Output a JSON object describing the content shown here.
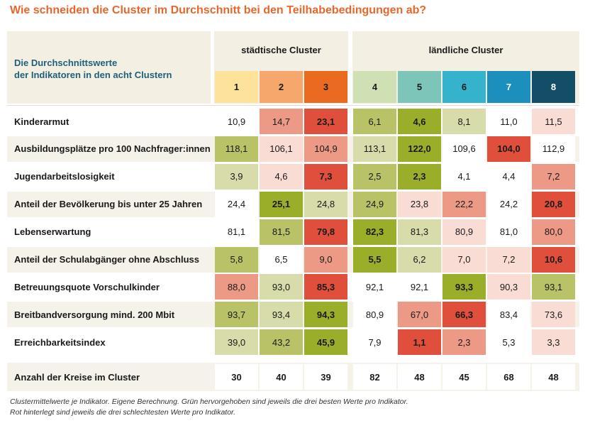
{
  "title": "Wie schneiden die Cluster im Durchschnitt bei den Teilhabebedingungen ab?",
  "header": {
    "description_line1": "Die Durchschnittswerte",
    "description_line2": "der Indikatoren in den acht Clustern",
    "group_urban": "städtische Cluster",
    "group_rural": "ländliche Cluster"
  },
  "chart_data": {
    "type": "table",
    "clusters": [
      {
        "label": "1",
        "color": "#fde39a",
        "text_color": "#1a1a1a"
      },
      {
        "label": "2",
        "color": "#f5a76c",
        "text_color": "#1a1a1a"
      },
      {
        "label": "3",
        "color": "#ea6b1f",
        "text_color": "#1a1a1a"
      },
      {
        "label": "4",
        "color": "#cfe1b4",
        "text_color": "#1a1a1a"
      },
      {
        "label": "5",
        "color": "#7cc5b8",
        "text_color": "#1a1a1a"
      },
      {
        "label": "6",
        "color": "#35b3cd",
        "text_color": "#1a1a1a"
      },
      {
        "label": "7",
        "color": "#1d8fbd",
        "text_color": "#ffffff"
      },
      {
        "label": "8",
        "color": "#124e66",
        "text_color": "#ffffff"
      }
    ],
    "rows": [
      {
        "label": "Kinderarmut",
        "values": [
          "10,9",
          "14,7",
          "23,1",
          "6,1",
          "4,6",
          "8,1",
          "11,0",
          "11,5"
        ],
        "shade": [
          0,
          -2,
          -4,
          2,
          4,
          1,
          0,
          -1
        ]
      },
      {
        "label": "Ausbildungsplätze pro 100 Nachfrager:innen",
        "values": [
          "118,1",
          "106,1",
          "104,9",
          "113,1",
          "122,0",
          "109,6",
          "104,0",
          "112,9"
        ],
        "shade": [
          2,
          -1,
          -2,
          1,
          4,
          0,
          -4,
          0
        ]
      },
      {
        "label": "Jugendarbeitslosigkeit",
        "values": [
          "3,9",
          "4,6",
          "7,3",
          "2,5",
          "2,3",
          "4,1",
          "4,4",
          "7,2"
        ],
        "shade": [
          1,
          -1,
          -4,
          2,
          4,
          0,
          0,
          -2
        ]
      },
      {
        "label": "Anteil der Bevölkerung bis unter 25 Jahren",
        "values": [
          "24,4",
          "25,1",
          "24,8",
          "24,9",
          "23,8",
          "22,2",
          "24,2",
          "20,8"
        ],
        "shade": [
          0,
          4,
          1,
          2,
          -1,
          -2,
          0,
          -4
        ]
      },
      {
        "label": "Lebenserwartung",
        "values": [
          "81,1",
          "81,5",
          "79,8",
          "82,3",
          "81,3",
          "80,9",
          "81,0",
          "80,0"
        ],
        "shade": [
          0,
          2,
          -4,
          4,
          1,
          -1,
          0,
          -2
        ]
      },
      {
        "label": "Anteil der Schulabgänger ohne Abschluss",
        "values": [
          "5,8",
          "6,5",
          "9,0",
          "5,5",
          "6,2",
          "7,0",
          "7,2",
          "10,6"
        ],
        "shade": [
          2,
          0,
          -2,
          4,
          1,
          -1,
          -1,
          -4
        ]
      },
      {
        "label": "Betreuungsquote Vorschulkinder",
        "values": [
          "88,0",
          "93,0",
          "85,3",
          "92,1",
          "92,1",
          "93,3",
          "90,3",
          "93,1"
        ],
        "shade": [
          -2,
          1,
          -4,
          0,
          0,
          4,
          -1,
          2
        ]
      },
      {
        "label": "Breitbandversorgung mind. 200 Mbit",
        "values": [
          "93,7",
          "93,4",
          "94,3",
          "80,9",
          "67,0",
          "66,3",
          "83,4",
          "73,6"
        ],
        "shade": [
          2,
          1,
          4,
          0,
          -2,
          -4,
          0,
          -1
        ]
      },
      {
        "label": "Erreichbarkeitsindex",
        "values": [
          "39,0",
          "43,2",
          "45,9",
          "7,9",
          "1,1",
          "2,3",
          "5,3",
          "3,3"
        ],
        "shade": [
          1,
          2,
          4,
          0,
          -4,
          -2,
          0,
          -1
        ]
      }
    ],
    "bold_cells": [
      [
        2,
        4
      ],
      [
        2,
        4
      ],
      [
        2,
        4
      ],
      [
        1,
        7
      ],
      [
        2,
        3
      ],
      [
        3,
        7
      ],
      [
        2,
        5
      ],
      [
        2,
        5
      ],
      [
        2,
        4
      ]
    ],
    "count_row": {
      "label": "Anzahl der Kreise im Cluster",
      "values": [
        "30",
        "40",
        "39",
        "82",
        "48",
        "45",
        "68",
        "48"
      ]
    },
    "colors": {
      "best": "#9bae2a",
      "good2": "#b9c266",
      "good1": "#d8dcaa",
      "bad1": "#f9dcd4",
      "bad2": "#ec9a86",
      "worst": "#df4f3b",
      "neutral": "#ffffff",
      "band": "#f5f2ea"
    }
  },
  "footnote_line1": "Clustermittelwerte je Indikator. Eigene Berechnung. Grün hervorgehoben sind jeweils die drei besten Werte pro Indikator.",
  "footnote_line2": "Rot hinterlegt sind jeweils die drei schlechtesten Werte pro Indikator."
}
